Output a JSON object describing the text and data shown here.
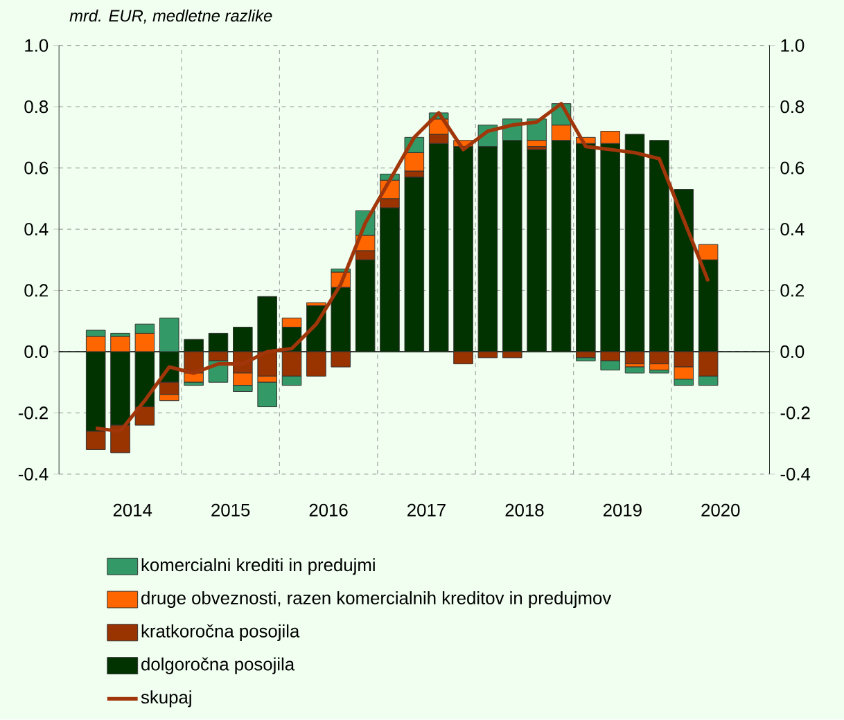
{
  "chart_data": {
    "type": "bar",
    "stacked": true,
    "title": "mrd. EUR, medletne razlike",
    "x": [
      2014.125,
      2014.375,
      2014.625,
      2014.875,
      2015.125,
      2015.375,
      2015.625,
      2015.875,
      2016.125,
      2016.375,
      2016.625,
      2016.875,
      2017.125,
      2017.375,
      2017.625,
      2017.875,
      2018.125,
      2018.375,
      2018.625,
      2018.875,
      2019.125,
      2019.375,
      2019.625,
      2019.875,
      2020.125,
      2020.375
    ],
    "xlim": [
      2013.75,
      2021
    ],
    "xticks": [
      {
        "value": 2014.5,
        "label": "2014"
      },
      {
        "value": 2015.5,
        "label": "2015"
      },
      {
        "value": 2016.5,
        "label": "2016"
      },
      {
        "value": 2017.5,
        "label": "2017"
      },
      {
        "value": 2018.5,
        "label": "2018"
      },
      {
        "value": 2019.5,
        "label": "2019"
      },
      {
        "value": 2020.5,
        "label": "2020"
      },
      {
        "value": 2015,
        "label": null
      },
      {
        "value": 2016,
        "label": null
      },
      {
        "value": 2017,
        "label": null
      },
      {
        "value": 2018,
        "label": null
      },
      {
        "value": 2019,
        "label": null
      },
      {
        "value": 2020,
        "label": null
      }
    ],
    "ylim": [
      -0.4,
      1.0
    ],
    "yticks": [
      {
        "value": -0.4,
        "label": "-0.4"
      },
      {
        "value": -0.2,
        "label": "-0.2"
      },
      {
        "value": 0,
        "label": "0.0"
      },
      {
        "value": 0.2,
        "label": "0.2"
      },
      {
        "value": 0.4,
        "label": "0.4"
      },
      {
        "value": 0.6,
        "label": "0.6"
      },
      {
        "value": 0.8,
        "label": "0.8"
      },
      {
        "value": 1.0,
        "label": "1.0"
      }
    ],
    "y2lim": [
      -0.4,
      1.0
    ],
    "y2ticks": [
      {
        "value": -0.4,
        "label": "-0.4"
      },
      {
        "value": -0.2,
        "label": "-0.2"
      },
      {
        "value": 0,
        "label": "0.0"
      },
      {
        "value": 0.2,
        "label": "0.2"
      },
      {
        "value": 0.4,
        "label": "0.4"
      },
      {
        "value": 0.6,
        "label": "0.6"
      },
      {
        "value": 0.8,
        "label": "0.8"
      },
      {
        "value": 1.0,
        "label": "1.0"
      }
    ],
    "grid": true,
    "legend": "bottom",
    "series": [
      {
        "name": "dolgoročna posojila",
        "color": "#003300",
        "values": [
          -0.26,
          -0.24,
          -0.18,
          -0.1,
          0.04,
          0.06,
          0.08,
          0.18,
          0.08,
          0.15,
          0.21,
          0.3,
          0.47,
          0.57,
          0.68,
          0.67,
          0.67,
          0.69,
          0.66,
          0.69,
          0.68,
          0.68,
          0.71,
          0.69,
          0.53,
          0.3
        ]
      },
      {
        "name": "kratkoročna posojila",
        "color": "#993300",
        "values": [
          -0.06,
          -0.09,
          -0.06,
          -0.04,
          -0.07,
          -0.03,
          -0.07,
          -0.08,
          -0.08,
          -0.08,
          -0.05,
          0.03,
          0.03,
          0.02,
          0.03,
          -0.04,
          -0.02,
          -0.02,
          0.01,
          null,
          -0.02,
          -0.03,
          -0.04,
          -0.04,
          -0.05,
          -0.08
        ]
      },
      {
        "name": "druge obveznosti, razen komercialnih kreditov in predujmov",
        "color": "#ff6600",
        "values": [
          0.05,
          0.05,
          0.06,
          -0.02,
          -0.03,
          null,
          -0.04,
          -0.02,
          0.03,
          0.01,
          0.05,
          0.05,
          0.06,
          0.06,
          0.05,
          0.02,
          null,
          null,
          0.02,
          0.05,
          0.02,
          0.04,
          -0.01,
          -0.02,
          -0.04,
          0.05
        ]
      },
      {
        "name": "komercialni krediti in predujmi",
        "color": "#339966",
        "values": [
          0.02,
          0.01,
          0.03,
          0.11,
          -0.01,
          -0.07,
          -0.02,
          -0.08,
          -0.03,
          null,
          0.01,
          0.08,
          0.02,
          0.05,
          0.02,
          null,
          0.07,
          0.07,
          0.07,
          0.07,
          -0.01,
          -0.03,
          -0.02,
          -0.01,
          -0.02,
          -0.03
        ]
      },
      {
        "name": "skupaj",
        "type": "line",
        "color": "#a0360a",
        "line_style": "solid",
        "values": [
          -0.25,
          -0.26,
          -0.16,
          -0.05,
          -0.07,
          -0.04,
          -0.04,
          0.0,
          0.01,
          0.09,
          0.22,
          0.42,
          0.56,
          0.7,
          0.78,
          0.66,
          0.72,
          0.74,
          0.75,
          0.81,
          0.67,
          0.66,
          0.65,
          0.63,
          0.43,
          0.23
        ]
      }
    ]
  }
}
